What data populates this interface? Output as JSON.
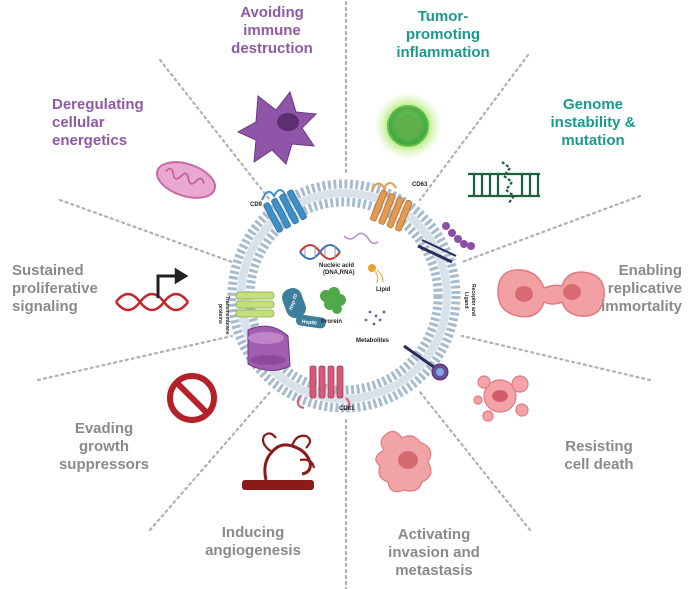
{
  "hallmarks": {
    "avoiding_immune": "Avoiding\nimmune\ndestruction",
    "tumor_inflammation": "Tumor-\npromoting\ninflammation",
    "deregulating_energetics": "Deregulating\ncellular\nenergetics",
    "genome_instability": "Genome\ninstability &\nmutation",
    "sustained_proliferative": "Sustained\nproliferative\nsignaling",
    "replicative_immortality": "Enabling\nreplicative\nimmortality",
    "evading_suppressors": "Evading\ngrowth\nsuppressors",
    "resisting_death": "Resisting\ncell death",
    "inducing_angiogenesis": "Inducing\nangiogenesis",
    "invasion_metastasis": "Activating\ninvasion and\nmetastasis"
  },
  "exosome": {
    "cd9": "CD9",
    "cd63": "CD63",
    "cd81": "CD81",
    "nucleic_acid": "Nucleic acid\n(DNA,RNA)",
    "lipid": "Lipid",
    "protein": "Prorein",
    "metabolites": "Metabolites",
    "hsp70": "Hsp-70",
    "hsp90": "Hsp90",
    "transmembrane": "Transmembrane\nproteins",
    "receptor_ligand": "Receptor and\nLigand"
  },
  "colors": {
    "purple": "#8e5aa6",
    "teal": "#1b9a8c",
    "gray": "#8a8a8a",
    "membrane": "#9fb6c9",
    "cd9": "#3c8fc7",
    "cd63": "#e59a4f",
    "cd81": "#d55a7a"
  }
}
